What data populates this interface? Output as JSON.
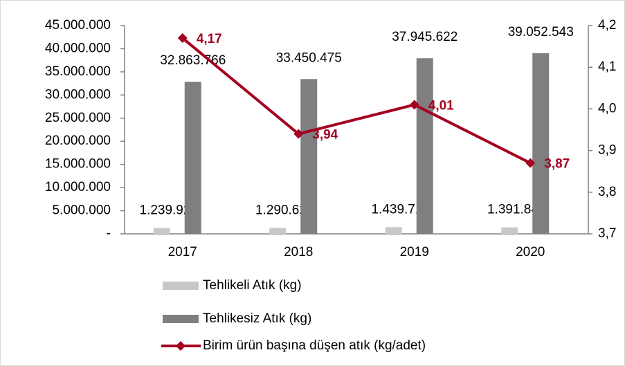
{
  "chart_data": {
    "type": "bar_line",
    "categories": [
      "2017",
      "2018",
      "2019",
      "2020"
    ],
    "series": [
      {
        "name": "Tehlikeli Atık (kg)",
        "color": "#c8c8c8",
        "values": [
          1239925,
          1290626,
          1439718,
          1391845
        ],
        "value_labels": [
          "1.239.925",
          "1.290.626",
          "1.439.718",
          "1.391.845"
        ]
      },
      {
        "name": "Tehlikesiz Atık (kg)",
        "color": "#7f7f7f",
        "values": [
          32863766,
          33450475,
          37945622,
          39052543
        ],
        "value_labels": [
          "32.863.766",
          "33.450.475",
          "37.945.622",
          "39.052.543"
        ]
      },
      {
        "name": "Birim ürün başına düşen atık (kg/adet)",
        "color": "#a50021",
        "axis": "y2",
        "values": [
          4.17,
          3.94,
          4.01,
          3.87
        ],
        "value_labels": [
          "4,17",
          "3,94",
          "4,01",
          "3,87"
        ]
      }
    ],
    "ylim": [
      0,
      45000000
    ],
    "yticks": [
      {
        "value": 0,
        "label": "-"
      },
      {
        "value": 5000000,
        "label": "5.000.000"
      },
      {
        "value": 10000000,
        "label": "10.000.000"
      },
      {
        "value": 15000000,
        "label": "15.000.000"
      },
      {
        "value": 20000000,
        "label": "20.000.000"
      },
      {
        "value": 25000000,
        "label": "25.000.000"
      },
      {
        "value": 30000000,
        "label": "30.000.000"
      },
      {
        "value": 35000000,
        "label": "35.000.000"
      },
      {
        "value": 40000000,
        "label": "40.000.000"
      },
      {
        "value": 45000000,
        "label": "45.000.000"
      }
    ],
    "y2lim": [
      3.7,
      4.2
    ],
    "y2ticks": [
      {
        "value": 3.7,
        "label": "3,7"
      },
      {
        "value": 3.8,
        "label": "3,8"
      },
      {
        "value": 3.9,
        "label": "3,9"
      },
      {
        "value": 4.0,
        "label": "4,0"
      },
      {
        "value": 4.1,
        "label": "4,1"
      },
      {
        "value": 4.2,
        "label": "4,2"
      }
    ],
    "legend": "bottom-left"
  }
}
